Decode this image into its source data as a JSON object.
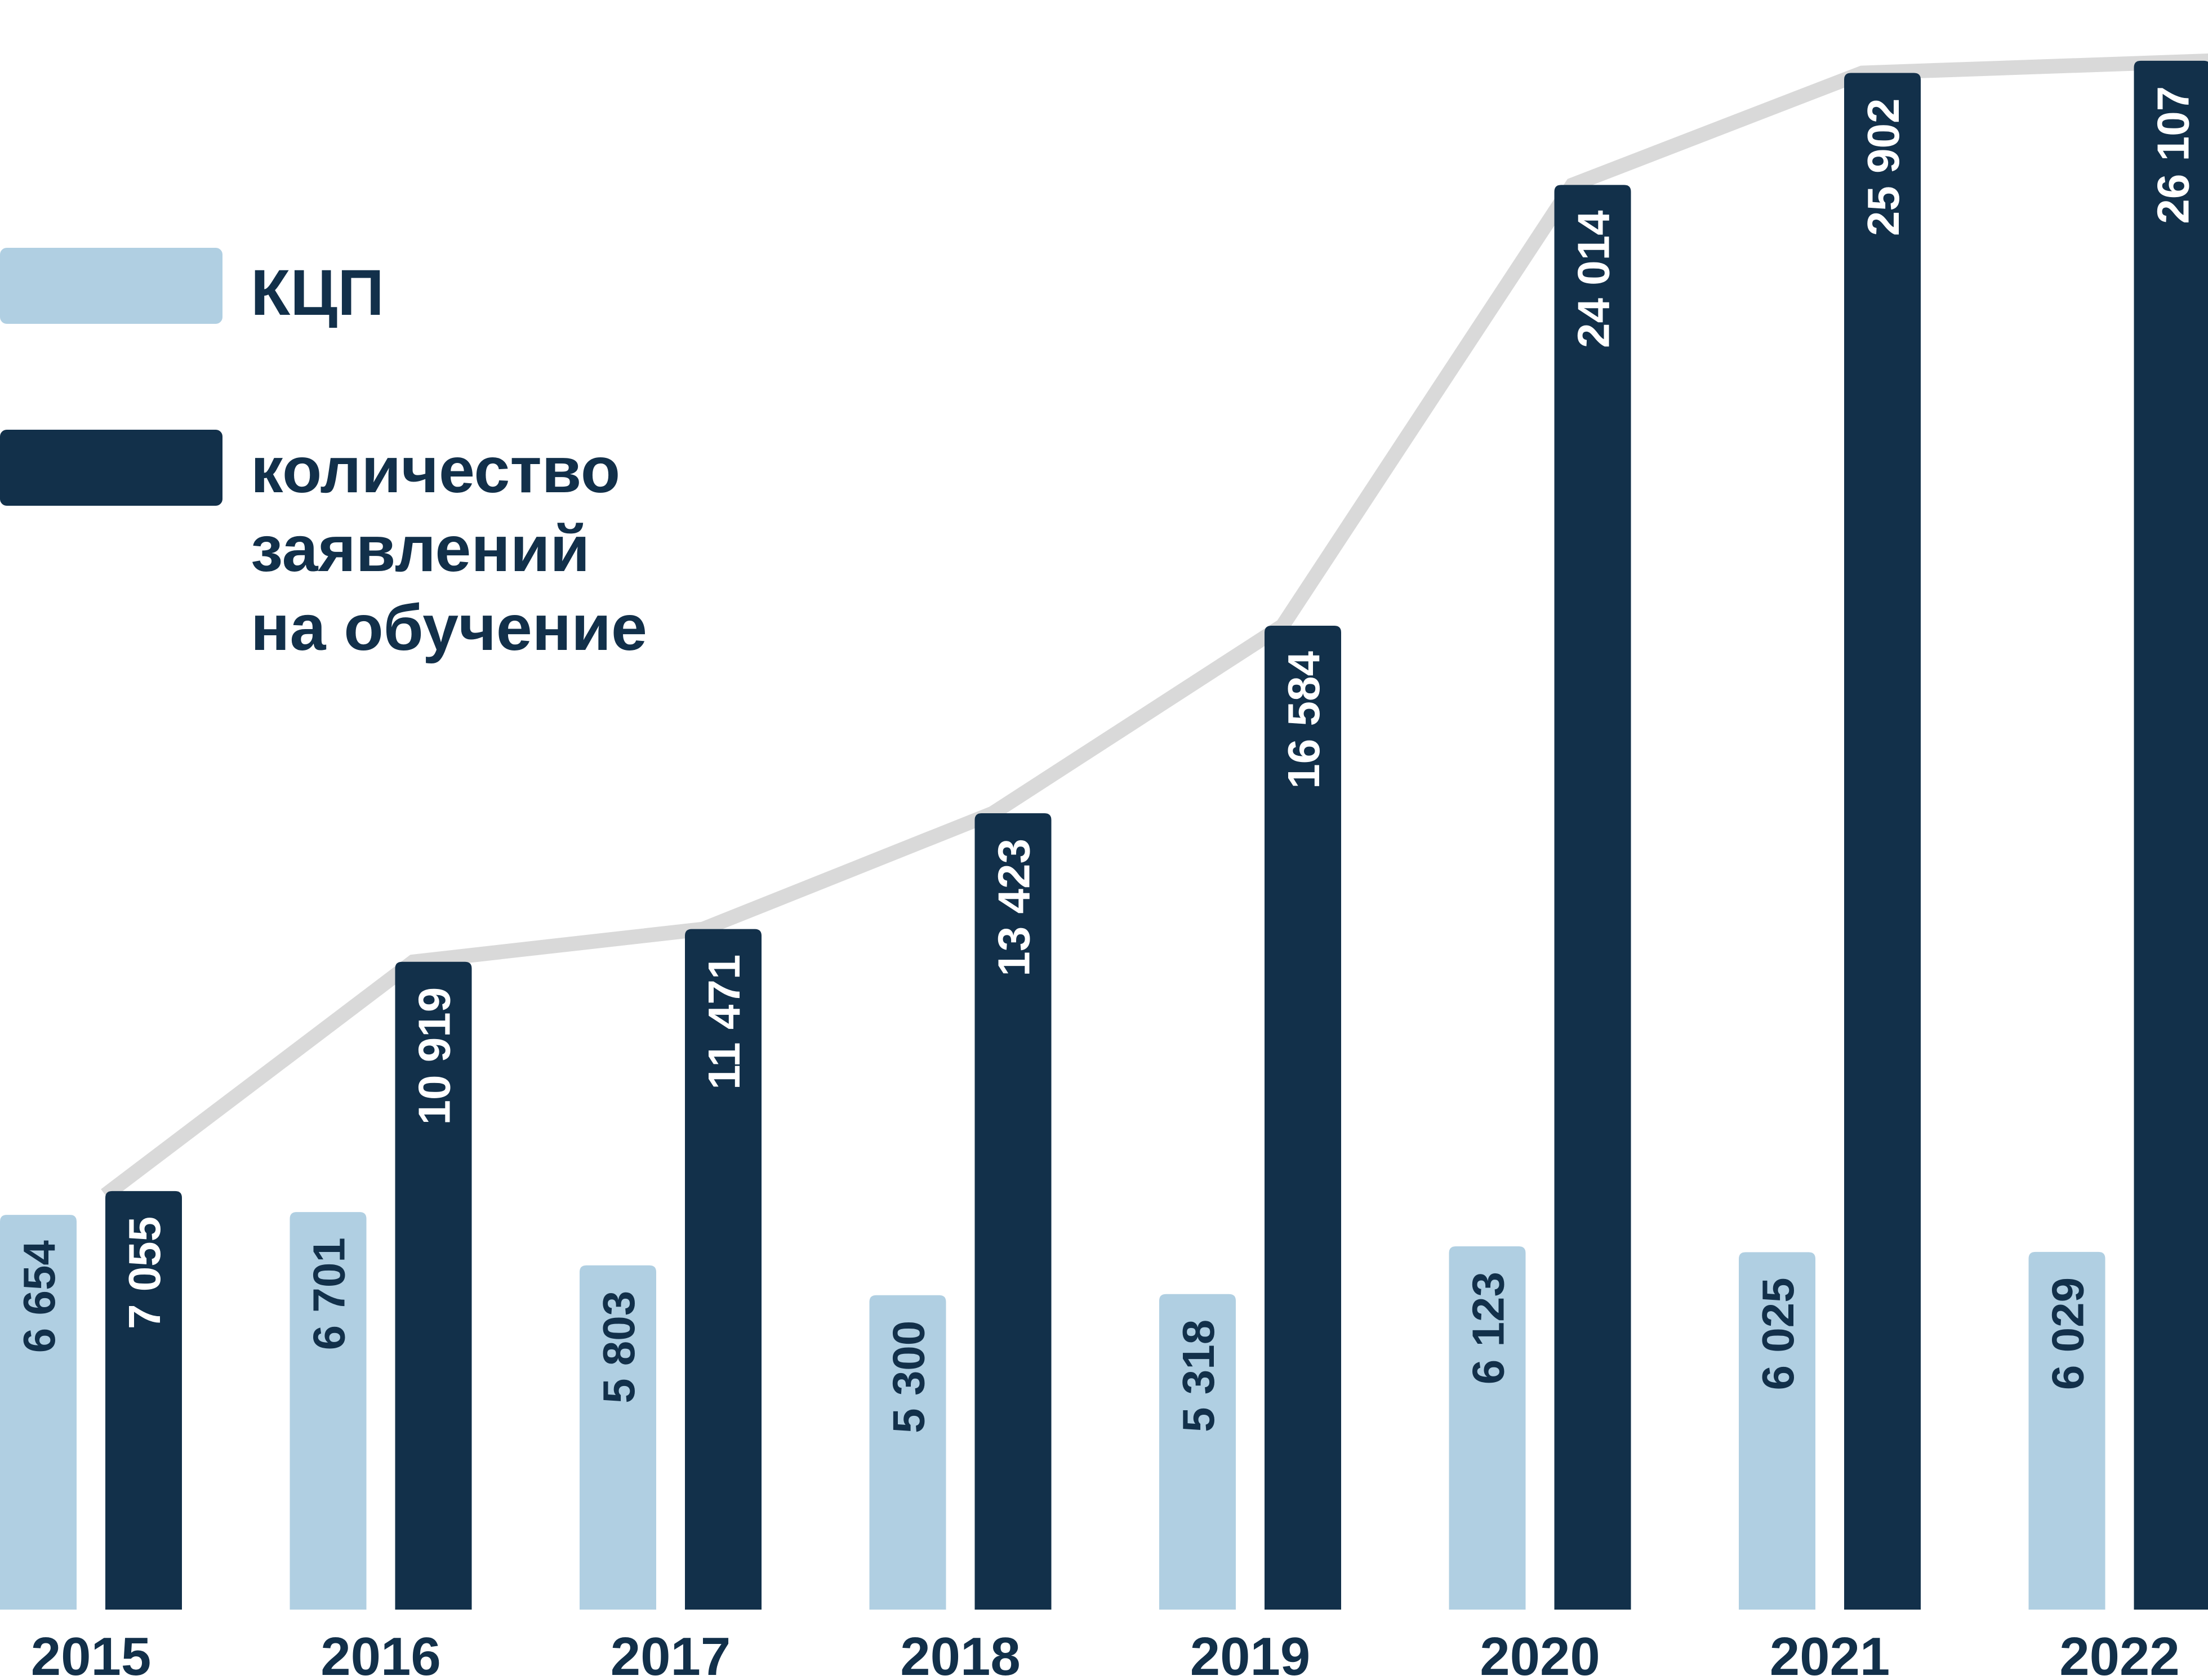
{
  "chart_data": {
    "type": "bar",
    "title": "",
    "xlabel": "",
    "ylabel": "",
    "categories": [
      "2015",
      "2016",
      "2017",
      "2018",
      "2019",
      "2020",
      "2021",
      "2022"
    ],
    "series": [
      {
        "name": "КЦП",
        "color": "#b0cfe2",
        "values": [
          6654,
          6701,
          5803,
          5300,
          5318,
          6123,
          6025,
          6029
        ],
        "labels": [
          "6 654",
          "6 701",
          "5 803",
          "5 300",
          "5 318",
          "6 123",
          "6 025",
          "6 029"
        ]
      },
      {
        "name_lines": [
          "количество",
          "заявлений",
          "на обучение"
        ],
        "color": "#12304a",
        "values": [
          7055,
          10919,
          11471,
          13423,
          16584,
          24014,
          25902,
          26107
        ],
        "labels": [
          "7 055",
          "10 919",
          "11 471",
          "13 423",
          "16 584",
          "24 014",
          "25 902",
          "26 107"
        ]
      }
    ],
    "trend_line": {
      "follows": "количество заявлений на обучение",
      "color": "#d9d9d9"
    },
    "ylim": [
      0,
      27200
    ],
    "grid": false,
    "legend_position": "top-left",
    "value_label_orientation": "vertical"
  }
}
